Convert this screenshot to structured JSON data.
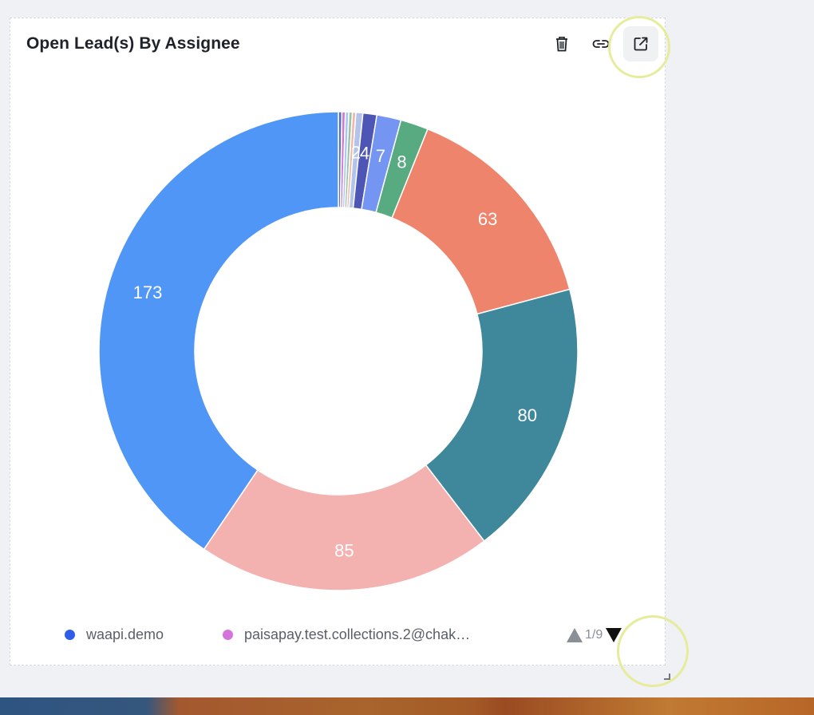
{
  "widget": {
    "title": "Open Lead(s) By Assignee"
  },
  "toolbar": {
    "delete_icon": "trash-icon",
    "link_icon": "link-icon",
    "open_icon": "external-link-icon"
  },
  "chart_data": {
    "type": "pie",
    "variant": "donut",
    "title": "Open Lead(s) By Assignee",
    "slices": [
      {
        "label": "",
        "value": 1,
        "color": "#5470c6",
        "show_label": false
      },
      {
        "label": "",
        "value": 1,
        "color": "#d07ad6",
        "show_label": false
      },
      {
        "label": "",
        "value": 1,
        "color": "#a9c6f5",
        "show_label": false
      },
      {
        "label": "",
        "value": 1,
        "color": "#9bc2a7",
        "show_label": false
      },
      {
        "label": "",
        "value": 1,
        "color": "#f0b7a9",
        "show_label": false
      },
      {
        "label": "",
        "value": 2,
        "color": "#b3c4e8",
        "show_label": true,
        "text": "2"
      },
      {
        "label": "",
        "value": 4,
        "color": "#4d55b5",
        "show_label": true,
        "text": "4"
      },
      {
        "label": "",
        "value": 7,
        "color": "#7595f2",
        "show_label": true,
        "text": "7"
      },
      {
        "label": "",
        "value": 8,
        "color": "#58aa81",
        "show_label": true,
        "text": "8"
      },
      {
        "label": "",
        "value": 63,
        "color": "#ef846c",
        "show_label": true,
        "text": "63"
      },
      {
        "label": "",
        "value": 80,
        "color": "#3f889c",
        "show_label": true,
        "text": "80"
      },
      {
        "label": "",
        "value": 85,
        "color": "#f3b1b0",
        "show_label": true,
        "text": "85"
      },
      {
        "label": "waapi.demo",
        "value": 173,
        "color": "#5096f6",
        "show_label": true,
        "text": "173"
      }
    ],
    "legend": {
      "placement": "bottom",
      "visible_items": [
        {
          "label": "waapi.demo",
          "color": "#2f5ce8"
        },
        {
          "label": "paisapay.test.collections.2@chak…",
          "color": "#d473dc"
        }
      ],
      "page": "1/9"
    }
  }
}
